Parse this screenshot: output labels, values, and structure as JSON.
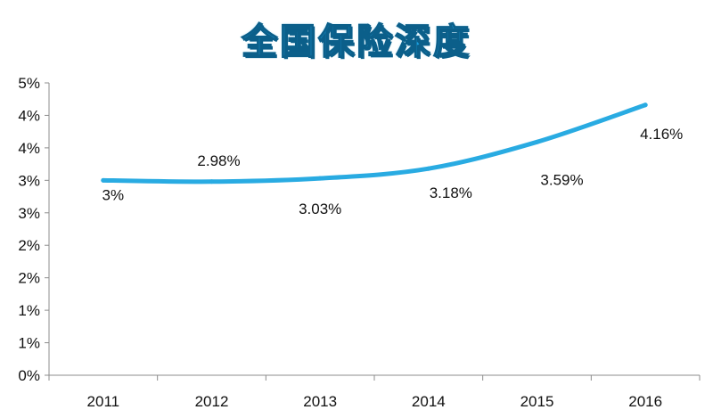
{
  "chart_data": {
    "type": "line",
    "title": "全国保险深度",
    "xlabel": "",
    "ylabel": "",
    "categories": [
      "2011",
      "2012",
      "2013",
      "2014",
      "2015",
      "2016"
    ],
    "series": [
      {
        "values": [
          3.0,
          2.98,
          3.03,
          3.18,
          3.59,
          4.16
        ],
        "labels": [
          "3%",
          "2.98%",
          "3.03%",
          "3.18%",
          "3.59%",
          "4.16%"
        ],
        "color": "#29abe2"
      }
    ],
    "y_tick_labels": [
      "0%",
      "1%",
      "1%",
      "2%",
      "2%",
      "3%",
      "3%",
      "4%",
      "4%",
      "5%"
    ],
    "ylim": [
      0,
      4.5
    ],
    "grid": false,
    "legend": "none"
  }
}
